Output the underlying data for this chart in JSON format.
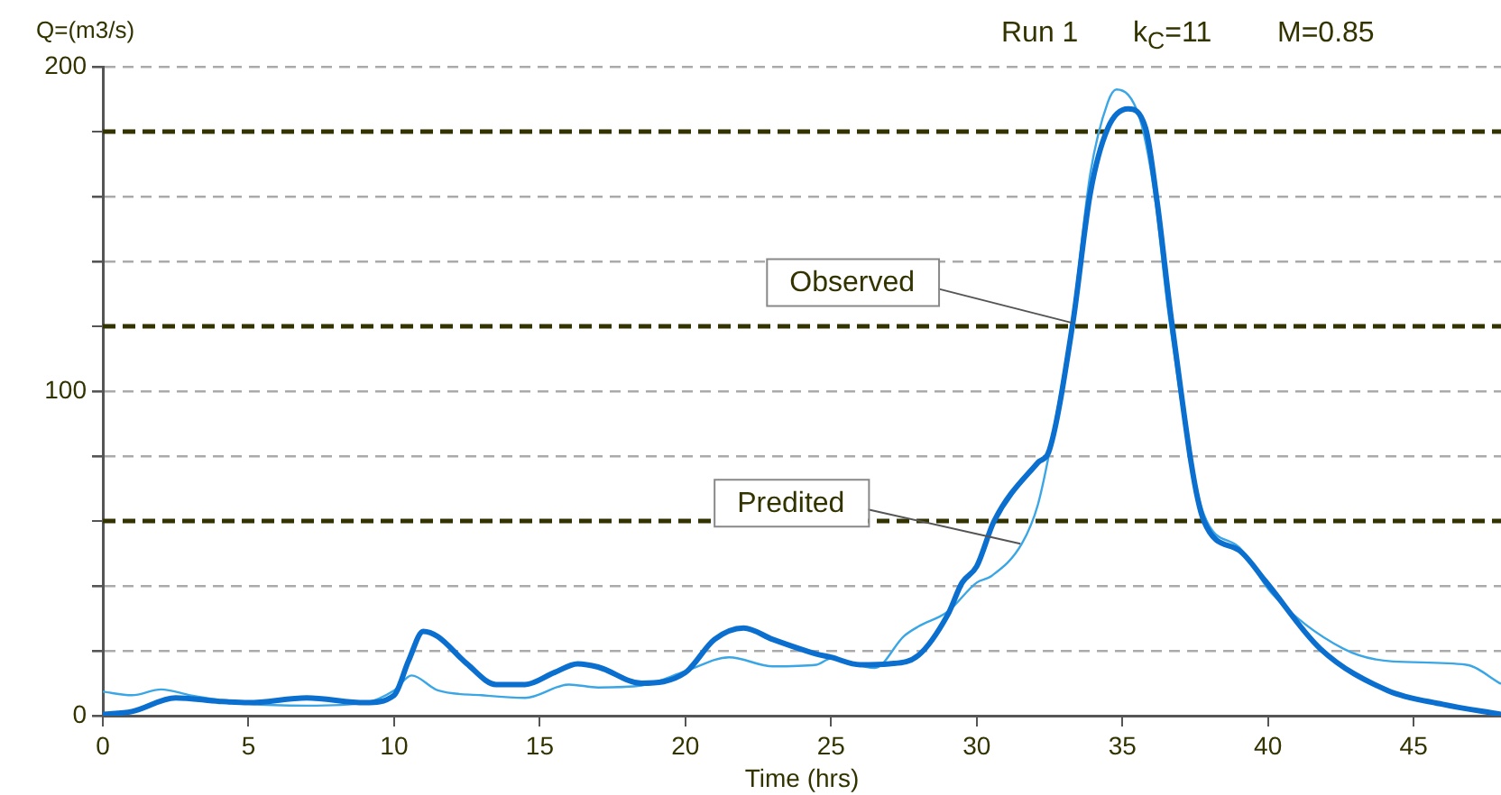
{
  "chart_data": {
    "type": "line",
    "title": "Run 1",
    "xlabel": "Time (hrs)",
    "ylabel": "Q=(m3/s)",
    "annotations": [
      "k$_{C}$=11",
      "M=0.85",
      {
        "text": "Observed",
        "x": 33.3,
        "y": 121
      },
      {
        "text": "Predited",
        "x": 31.5,
        "y": 53
      }
    ],
    "xlim": [
      0,
      48
    ],
    "xticks": [
      0,
      5,
      10,
      15,
      20,
      25,
      30,
      35,
      40,
      45
    ],
    "ylim": [
      0,
      200
    ],
    "yticks": [
      0,
      {
        "value": 20,
        "label": null
      },
      {
        "value": 40,
        "label": null
      },
      {
        "value": 80,
        "label": null
      },
      100,
      {
        "value": 140,
        "label": null
      },
      {
        "value": 160,
        "label": null
      },
      200
    ],
    "grid": "y",
    "legend": false,
    "marker": "none",
    "line_style": "solid",
    "ref_lines": [
      {
        "axis": "y",
        "value": 60,
        "color": "#333300",
        "line_style": "dashed"
      },
      {
        "axis": "y",
        "value": 120,
        "color": "#333300",
        "line_style": "dashed"
      },
      {
        "axis": "y",
        "value": 180,
        "color": "#333300",
        "line_style": "dashed"
      }
    ],
    "series": [
      {
        "color": "#0a6fcf",
        "x": [
          0,
          1,
          2.5,
          4,
          5,
          7,
          9,
          10,
          10.5,
          11,
          11.5,
          12.5,
          13.5,
          14.5,
          15.5,
          16.3,
          17,
          18.5,
          20,
          21,
          22,
          23,
          24.5,
          25,
          26,
          27,
          28,
          29,
          29.5,
          30,
          30.6,
          32.1,
          32.5,
          33.3,
          33.9,
          34.5,
          35.2,
          35.8,
          36.2,
          36.7,
          37.8,
          39,
          39.9,
          41.8,
          44.1,
          46,
          48
        ],
        "values": [
          0.4,
          1.3,
          5.5,
          4.4,
          4,
          5.5,
          4,
          6.3,
          17,
          26,
          24.4,
          16,
          9.6,
          9.6,
          13.3,
          16,
          15,
          10,
          13.3,
          23.5,
          27,
          23.5,
          19,
          18,
          15.7,
          16,
          18.6,
          31,
          41,
          46,
          60,
          78,
          82,
          121,
          161,
          181,
          187,
          181,
          158,
          121,
          60,
          51,
          41.6,
          20.6,
          7.8,
          3.5,
          0.4
        ]
      },
      {
        "color": "#3aa6e6",
        "x": [
          0,
          1,
          2,
          3,
          5,
          7,
          9,
          10,
          10.6,
          11.5,
          13,
          14.5,
          16,
          17,
          18.5,
          20,
          21.5,
          23,
          24.5,
          25,
          26.5,
          27.5,
          28,
          29,
          30,
          30.5,
          31.55,
          32.1,
          32.6,
          33.3,
          33.9,
          34.5,
          34.8,
          35.6,
          36.1,
          36.6,
          37.8,
          39,
          40.1,
          42.6,
          44.3,
          46.8,
          48
        ],
        "values": [
          7.4,
          6.3,
          8.1,
          6.3,
          3.7,
          3.1,
          4,
          7.8,
          12.4,
          7.8,
          6.3,
          5.5,
          9.6,
          8.7,
          9.3,
          13.7,
          18,
          15.2,
          15.7,
          17.6,
          14.7,
          24.5,
          27.5,
          32,
          41,
          43,
          53,
          65,
          86,
          123,
          167,
          189,
          193,
          184,
          161,
          123,
          62,
          52,
          38,
          20.6,
          16.7,
          15.7,
          9.8
        ]
      }
    ]
  }
}
